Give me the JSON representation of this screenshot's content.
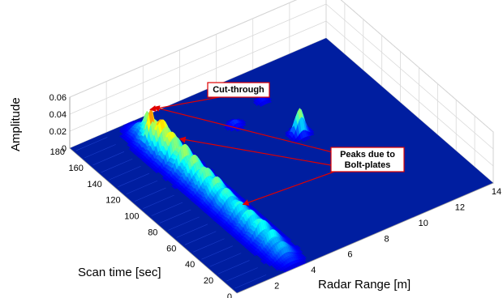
{
  "chart_data": {
    "type": "surface",
    "title": "",
    "xlabel": "Radar Range [m]",
    "ylabel": "Scan time [sec]",
    "zlabel": "Amplitude",
    "xlim": [
      0,
      14
    ],
    "ylim": [
      0,
      180
    ],
    "zlim": [
      0,
      0.06
    ],
    "x_ticks": [
      "0",
      "2",
      "4",
      "6",
      "8",
      "10",
      "12",
      "14"
    ],
    "y_ticks": [
      "0",
      "20",
      "40",
      "60",
      "80",
      "100",
      "120",
      "140",
      "160",
      "180"
    ],
    "z_ticks": [
      "0",
      "0.02",
      "0.04",
      "0.06"
    ],
    "grid": true,
    "colormap": "jet",
    "colors": {
      "background": "#001ea0",
      "low": "#0000b4",
      "high": "#c80000"
    },
    "series": [
      {
        "ridge_range_m": 3.2,
        "points": [
          {
            "y": 10,
            "z": 0.01
          },
          {
            "y": 20,
            "z": 0.014
          },
          {
            "y": 30,
            "z": 0.016
          },
          {
            "y": 40,
            "z": 0.018
          },
          {
            "y": 50,
            "z": 0.017
          },
          {
            "y": 60,
            "z": 0.016
          },
          {
            "y": 70,
            "z": 0.017
          },
          {
            "y": 80,
            "z": 0.019
          },
          {
            "y": 90,
            "z": 0.02
          },
          {
            "y": 100,
            "z": 0.021
          },
          {
            "y": 110,
            "z": 0.022
          },
          {
            "y": 120,
            "z": 0.024
          },
          {
            "y": 130,
            "z": 0.026
          },
          {
            "y": 140,
            "z": 0.032
          },
          {
            "y": 150,
            "z": 0.03
          },
          {
            "y": 160,
            "z": 0.02
          },
          {
            "y": 170,
            "z": 0.008
          }
        ]
      }
    ],
    "features": [
      {
        "x": 3.0,
        "y": 152,
        "z": 0.045
      },
      {
        "x": 3.3,
        "y": 162,
        "z": 0.03
      },
      {
        "x": 9.0,
        "y": 110,
        "z": 0.03
      },
      {
        "x": 7.0,
        "y": 140,
        "z": 0.006
      },
      {
        "x": 9.0,
        "y": 150,
        "z": 0.004
      }
    ],
    "annotations": [
      {
        "text": "Cut-through",
        "target": {
          "x": 3.3,
          "y": 162,
          "z": 0.03
        }
      },
      {
        "text": "Peaks due to\nBolt-plates",
        "targets": [
          {
            "x": 3.0,
            "y": 152,
            "z": 0.045
          },
          {
            "x": 3.3,
            "y": 130,
            "z": 0.026
          },
          {
            "x": 3.2,
            "y": 60,
            "z": 0.016
          }
        ]
      }
    ]
  }
}
